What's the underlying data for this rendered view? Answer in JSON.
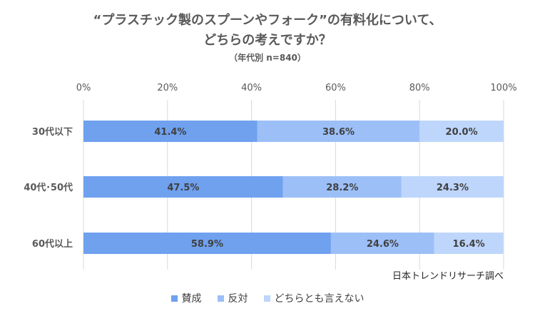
{
  "chart": {
    "title_line1": "“プラスチック製のスプーンやフォーク”の有料化について、",
    "title_line2": "どちらの考えですか？",
    "subtitle": "（年代別 n=840）",
    "source": "日本トレンドリサーチ調べ"
  },
  "colors": {
    "series": [
      "#6fa1ef",
      "#9cbff7",
      "#bed6fb"
    ],
    "grid": "#d9d9d9",
    "axis": "#bfbfbf"
  },
  "chart_data": {
    "type": "bar",
    "orientation": "horizontal",
    "stacked": "percent",
    "title": "“プラスチック製のスプーンやフォーク”の有料化について、どちらの考えですか？",
    "subtitle": "（年代別 n=840）",
    "categories": [
      "30代以下",
      "40代･50代",
      "60代以上"
    ],
    "series": [
      {
        "name": "賛成",
        "values": [
          41.4,
          47.5,
          58.9
        ],
        "labels": [
          "41.4%",
          "47.5%",
          "58.9%"
        ]
      },
      {
        "name": "反対",
        "values": [
          38.6,
          28.2,
          24.6
        ],
        "labels": [
          "38.6%",
          "28.2%",
          "24.6%"
        ]
      },
      {
        "name": "どちらとも言えない",
        "values": [
          20.0,
          24.3,
          16.4
        ],
        "labels": [
          "20.0%",
          "24.3%",
          "16.4%"
        ]
      }
    ],
    "xlim": [
      0,
      100
    ],
    "x_ticks": [
      "0%",
      "20%",
      "40%",
      "60%",
      "80%",
      "100%"
    ],
    "x_tick_values": [
      0,
      20,
      40,
      60,
      80,
      100
    ],
    "x_axis_position": "top",
    "grid": true,
    "legend_position": "bottom"
  }
}
